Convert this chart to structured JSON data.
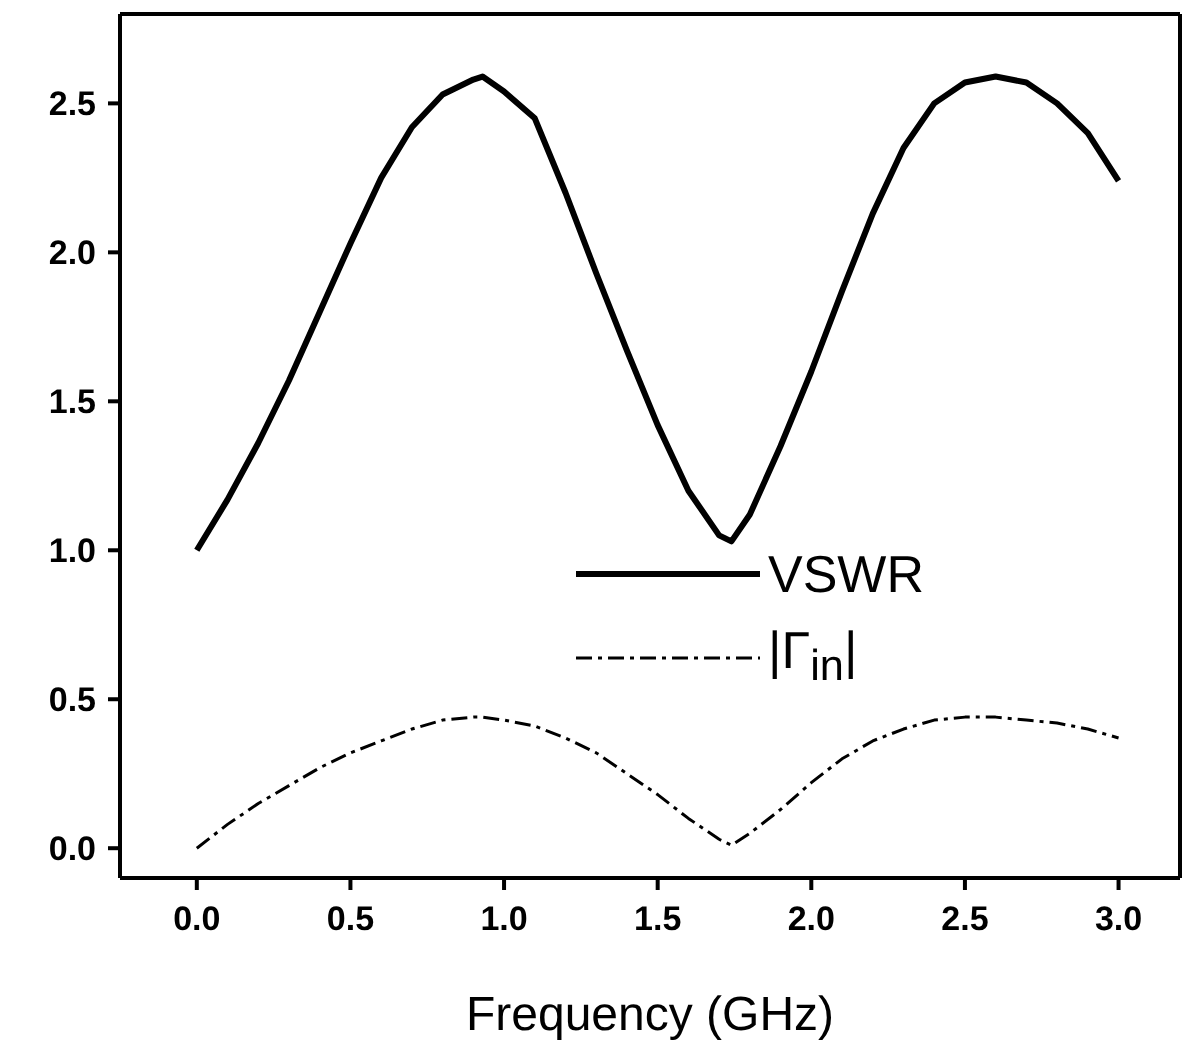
{
  "chart_data": {
    "type": "line",
    "xlabel": "Frequency (GHz)",
    "x": [
      0,
      0.1,
      0.2,
      0.3,
      0.4,
      0.5,
      0.6,
      0.7,
      0.8,
      0.9,
      0.93,
      1.0,
      1.1,
      1.2,
      1.3,
      1.4,
      1.5,
      1.6,
      1.7,
      1.74,
      1.8,
      1.9,
      2.0,
      2.1,
      2.2,
      2.3,
      2.4,
      2.5,
      2.6,
      2.7,
      2.8,
      2.9,
      3.0
    ],
    "series": [
      {
        "name": "VSWR",
        "color": "#000000",
        "line_style": "solid",
        "values": [
          1.0,
          1.17,
          1.36,
          1.57,
          1.8,
          2.03,
          2.25,
          2.42,
          2.53,
          2.58,
          2.59,
          2.54,
          2.45,
          2.2,
          1.93,
          1.67,
          1.42,
          1.2,
          1.05,
          1.03,
          1.12,
          1.35,
          1.6,
          1.87,
          2.13,
          2.35,
          2.5,
          2.57,
          2.59,
          2.57,
          2.5,
          2.4,
          2.24
        ]
      },
      {
        "name": "|Γ$_{in}$|",
        "color": "#000000",
        "line_style": "dashed",
        "values": [
          0.0,
          0.08,
          0.15,
          0.21,
          0.27,
          0.32,
          0.36,
          0.4,
          0.43,
          0.44,
          0.44,
          0.43,
          0.41,
          0.37,
          0.32,
          0.25,
          0.18,
          0.1,
          0.03,
          0.01,
          0.05,
          0.13,
          0.22,
          0.3,
          0.36,
          0.4,
          0.43,
          0.44,
          0.44,
          0.43,
          0.42,
          0.4,
          0.37
        ]
      }
    ],
    "xlim": [
      -0.25,
      3.2
    ],
    "xticks": [
      {
        "value": 0,
        "label": "0.0"
      },
      0.5,
      {
        "value": 1,
        "label": "1.0"
      },
      1.5,
      {
        "value": 2,
        "label": "2.0"
      },
      2.5,
      {
        "value": 3,
        "label": "3.0"
      }
    ],
    "ylim": [
      -0.1,
      2.8
    ],
    "yticks": [
      {
        "value": 0,
        "label": "0.0"
      },
      0.5,
      {
        "value": 1,
        "label": "1.0"
      },
      1.5,
      {
        "value": 2,
        "label": "2.0"
      },
      2.5
    ],
    "grid": false,
    "legend": "right",
    "marker": "none"
  }
}
